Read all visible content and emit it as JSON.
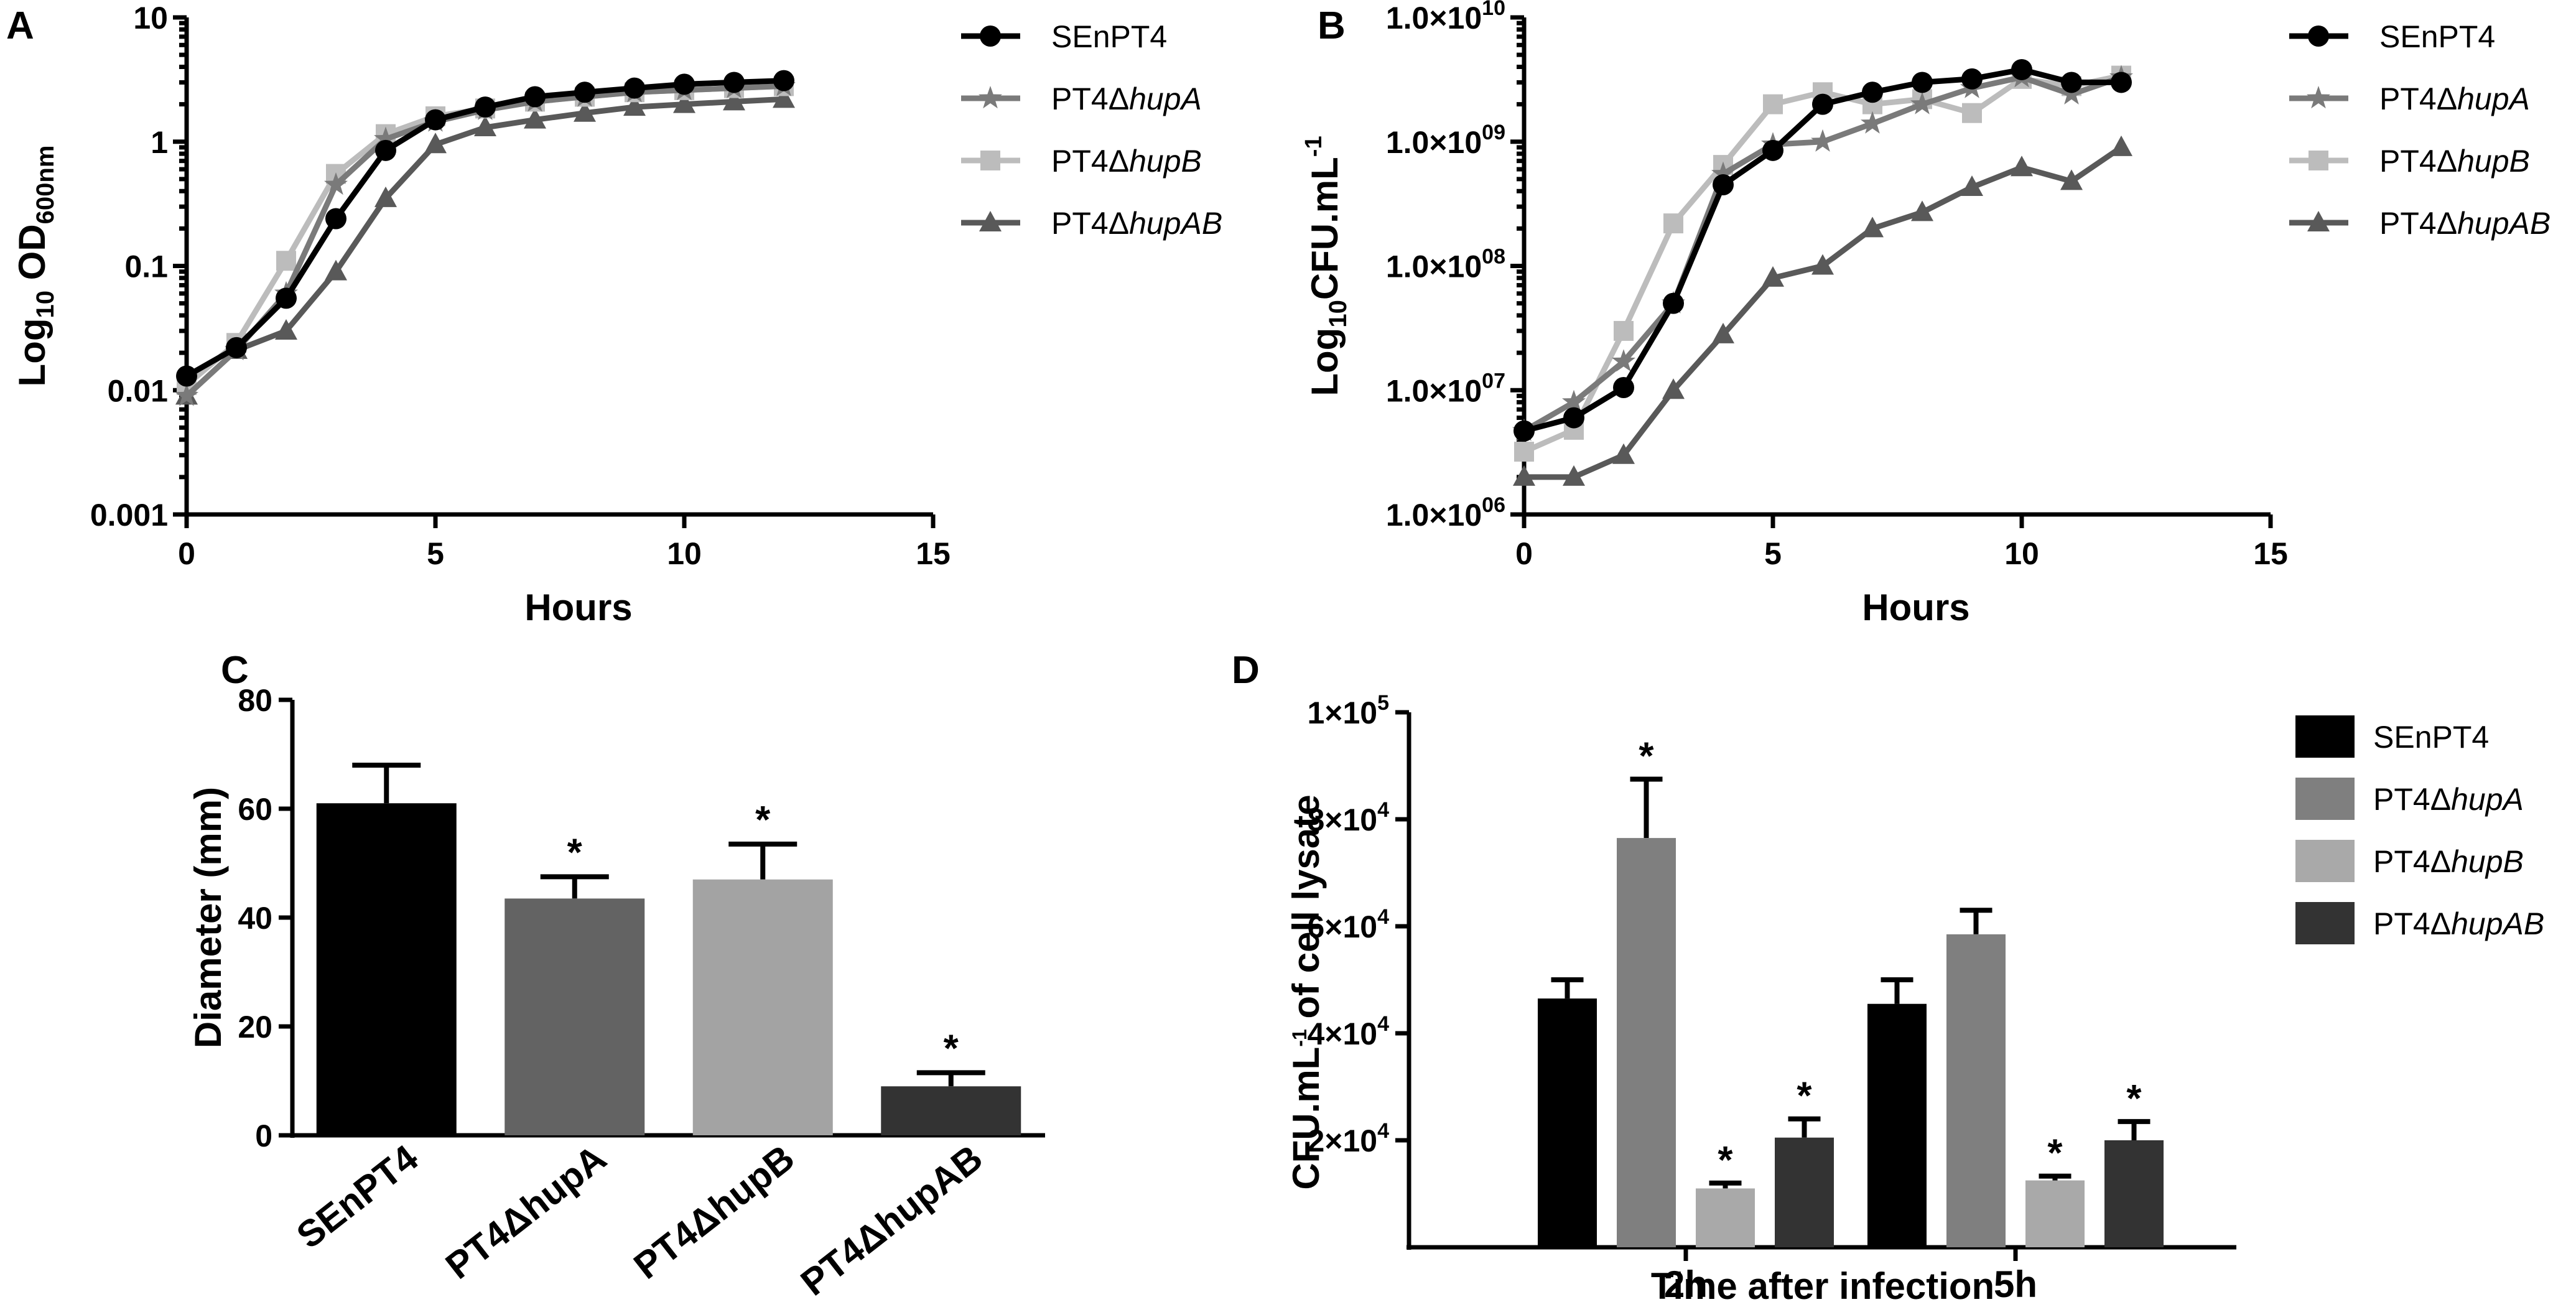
{
  "panels": {
    "A": "A",
    "B": "B",
    "C": "C",
    "D": "D"
  },
  "chart_data": [
    {
      "id": "A",
      "type": "line",
      "yscale": "log",
      "xlabel": "Hours",
      "ylabel_main": "Log",
      "ylabel_sub1": "10",
      "ylabel_mid": " OD",
      "ylabel_sub2": "600nm",
      "xlim": [
        0,
        15
      ],
      "ylim": [
        0.001,
        10
      ],
      "xticks": [
        0,
        5,
        10,
        15
      ],
      "xtick_labels": [
        "0",
        "5",
        "10",
        "15"
      ],
      "yticks": [
        0.001,
        0.01,
        0.1,
        1,
        10
      ],
      "ytick_labels": [
        "0.001",
        "0.01",
        "0.1",
        "1",
        "10"
      ],
      "x": [
        0,
        1,
        2,
        3,
        4,
        5,
        6,
        7,
        8,
        9,
        10,
        11,
        12
      ],
      "series": [
        {
          "name": "SEnPT4",
          "prefix": "SEnPT4",
          "italic": "",
          "marker": "circle",
          "color": "#000000",
          "values": [
            0.013,
            0.022,
            0.055,
            0.24,
            0.85,
            1.5,
            1.9,
            2.3,
            2.5,
            2.7,
            2.9,
            3.0,
            3.1
          ]
        },
        {
          "name": "PT4ΔhupA",
          "prefix": "PT4Δ",
          "italic": "hupA",
          "marker": "star",
          "color": "#7a7a7a",
          "values": [
            0.009,
            0.021,
            0.06,
            0.45,
            1.05,
            1.45,
            1.8,
            2.1,
            2.3,
            2.5,
            2.6,
            2.7,
            2.8
          ]
        },
        {
          "name": "PT4ΔhupB",
          "prefix": "PT4Δ",
          "italic": "hupB",
          "marker": "square",
          "color": "#bcbcbc",
          "values": [
            0.011,
            0.024,
            0.11,
            0.55,
            1.15,
            1.6,
            1.85,
            2.1,
            2.3,
            2.5,
            2.6,
            2.7,
            2.8
          ]
        },
        {
          "name": "PT4ΔhupAB",
          "prefix": "PT4Δ",
          "italic": "hupAB",
          "marker": "triangle",
          "color": "#595959",
          "values": [
            0.009,
            0.021,
            0.03,
            0.09,
            0.35,
            0.95,
            1.3,
            1.5,
            1.7,
            1.9,
            2.0,
            2.1,
            2.2
          ]
        }
      ]
    },
    {
      "id": "B",
      "type": "line",
      "yscale": "log",
      "xlabel": "Hours",
      "ylabel_main": "Log",
      "ylabel_sub1": "10",
      "ylabel_mid": "CFU.mL",
      "ylabel_sup": "-1",
      "xlim": [
        0,
        15
      ],
      "ylim": [
        1000000,
        10000000000
      ],
      "xticks": [
        0,
        5,
        10,
        15
      ],
      "xtick_labels": [
        "0",
        "5",
        "10",
        "15"
      ],
      "yticks": [
        1000000,
        10000000,
        100000000,
        1000000000,
        10000000000
      ],
      "ytick_base": "1.0×10",
      "ytick_exps": [
        "06",
        "07",
        "08",
        "09",
        "10"
      ],
      "x": [
        0,
        1,
        2,
        3,
        4,
        5,
        6,
        7,
        8,
        9,
        10,
        11,
        12
      ],
      "series": [
        {
          "name": "SEnPT4",
          "prefix": "SEnPT4",
          "italic": "",
          "marker": "circle",
          "color": "#000000",
          "values": [
            4700000.0,
            6000000.0,
            10500000.0,
            50000000.0,
            450000000.0,
            850000000.0,
            2000000000.0,
            2500000000.0,
            3000000000.0,
            3200000000.0,
            3800000000.0,
            3000000000.0,
            3000000000.0
          ]
        },
        {
          "name": "PT4ΔhupA",
          "prefix": "PT4Δ",
          "italic": "hupA",
          "marker": "star",
          "color": "#7a7a7a",
          "values": [
            4700000.0,
            8000000.0,
            17000000.0,
            50000000.0,
            550000000.0,
            950000000.0,
            1000000000.0,
            1400000000.0,
            2000000000.0,
            2700000000.0,
            3300000000.0,
            2400000000.0,
            3300000000.0
          ]
        },
        {
          "name": "PT4ΔhupB",
          "prefix": "PT4Δ",
          "italic": "hupB",
          "marker": "square",
          "color": "#bcbcbc",
          "values": [
            3200000.0,
            4800000.0,
            30000000.0,
            220000000.0,
            650000000.0,
            2000000000.0,
            2500000000.0,
            2000000000.0,
            2200000000.0,
            1700000000.0,
            3200000000.0,
            2800000000.0,
            3400000000.0
          ]
        },
        {
          "name": "PT4ΔhupAB",
          "prefix": "PT4Δ",
          "italic": "hupAB",
          "marker": "triangle",
          "color": "#595959",
          "values": [
            2000000.0,
            2000000.0,
            3000000.0,
            10000000.0,
            28000000.0,
            80000000.0,
            100000000.0,
            200000000.0,
            270000000.0,
            430000000.0,
            620000000.0,
            480000000.0,
            900000000.0
          ]
        }
      ]
    },
    {
      "id": "C",
      "type": "bar",
      "ylabel": "Diameter  (mm)",
      "ylim": [
        0,
        80
      ],
      "yticks": [
        0,
        20,
        40,
        60,
        80
      ],
      "ytick_labels": [
        "0",
        "20",
        "40",
        "60",
        "80"
      ],
      "categories": [
        "SEnPT4",
        "PT4ΔhupA",
        "PT4ΔhupB",
        "PT4ΔhupAB"
      ],
      "values": [
        61,
        43.5,
        47,
        9
      ],
      "errors": [
        7,
        4,
        6.5,
        2.5
      ],
      "significant": [
        "",
        "*",
        "*",
        "*"
      ],
      "colors": [
        "#000000",
        "#636363",
        "#a3a3a3",
        "#333333"
      ]
    },
    {
      "id": "D",
      "type": "bar",
      "xlabel": "Time after infection",
      "ylabel_main": "CFU.mL",
      "ylabel_sup": "-1",
      "ylabel_tail": " of cell lysate",
      "ylim": [
        0,
        100000
      ],
      "yticks": [
        20000,
        40000,
        60000,
        80000,
        100000
      ],
      "ytick_mant": [
        "2",
        "4",
        "6",
        "8",
        "1"
      ],
      "ytick_exps": [
        "4",
        "4",
        "4",
        "4",
        "5"
      ],
      "ytick_mid": "×10",
      "categories": [
        "2h",
        "5h"
      ],
      "series": [
        {
          "name": "SEnPT4",
          "prefix": "SEnPT4",
          "italic": "",
          "color": "#000000",
          "values": [
            46500,
            45500
          ],
          "errors": [
            3500,
            4500
          ],
          "significant": [
            "",
            ""
          ]
        },
        {
          "name": "PT4ΔhupA",
          "prefix": "PT4Δ",
          "italic": "hupA",
          "color": "#7f7f7f",
          "values": [
            76500,
            58500
          ],
          "errors": [
            11000,
            4500
          ],
          "significant": [
            "*",
            ""
          ]
        },
        {
          "name": "PT4ΔhupB",
          "prefix": "PT4Δ",
          "italic": "hupB",
          "color": "#a9a9a9",
          "values": [
            11000,
            12500
          ],
          "errors": [
            1000,
            800
          ],
          "significant": [
            "*",
            "*"
          ]
        },
        {
          "name": "PT4ΔhupAB",
          "prefix": "PT4Δ",
          "italic": "hupAB",
          "color": "#333333",
          "values": [
            20500,
            20000
          ],
          "errors": [
            3500,
            3500
          ],
          "significant": [
            "*",
            "*"
          ]
        }
      ]
    }
  ]
}
